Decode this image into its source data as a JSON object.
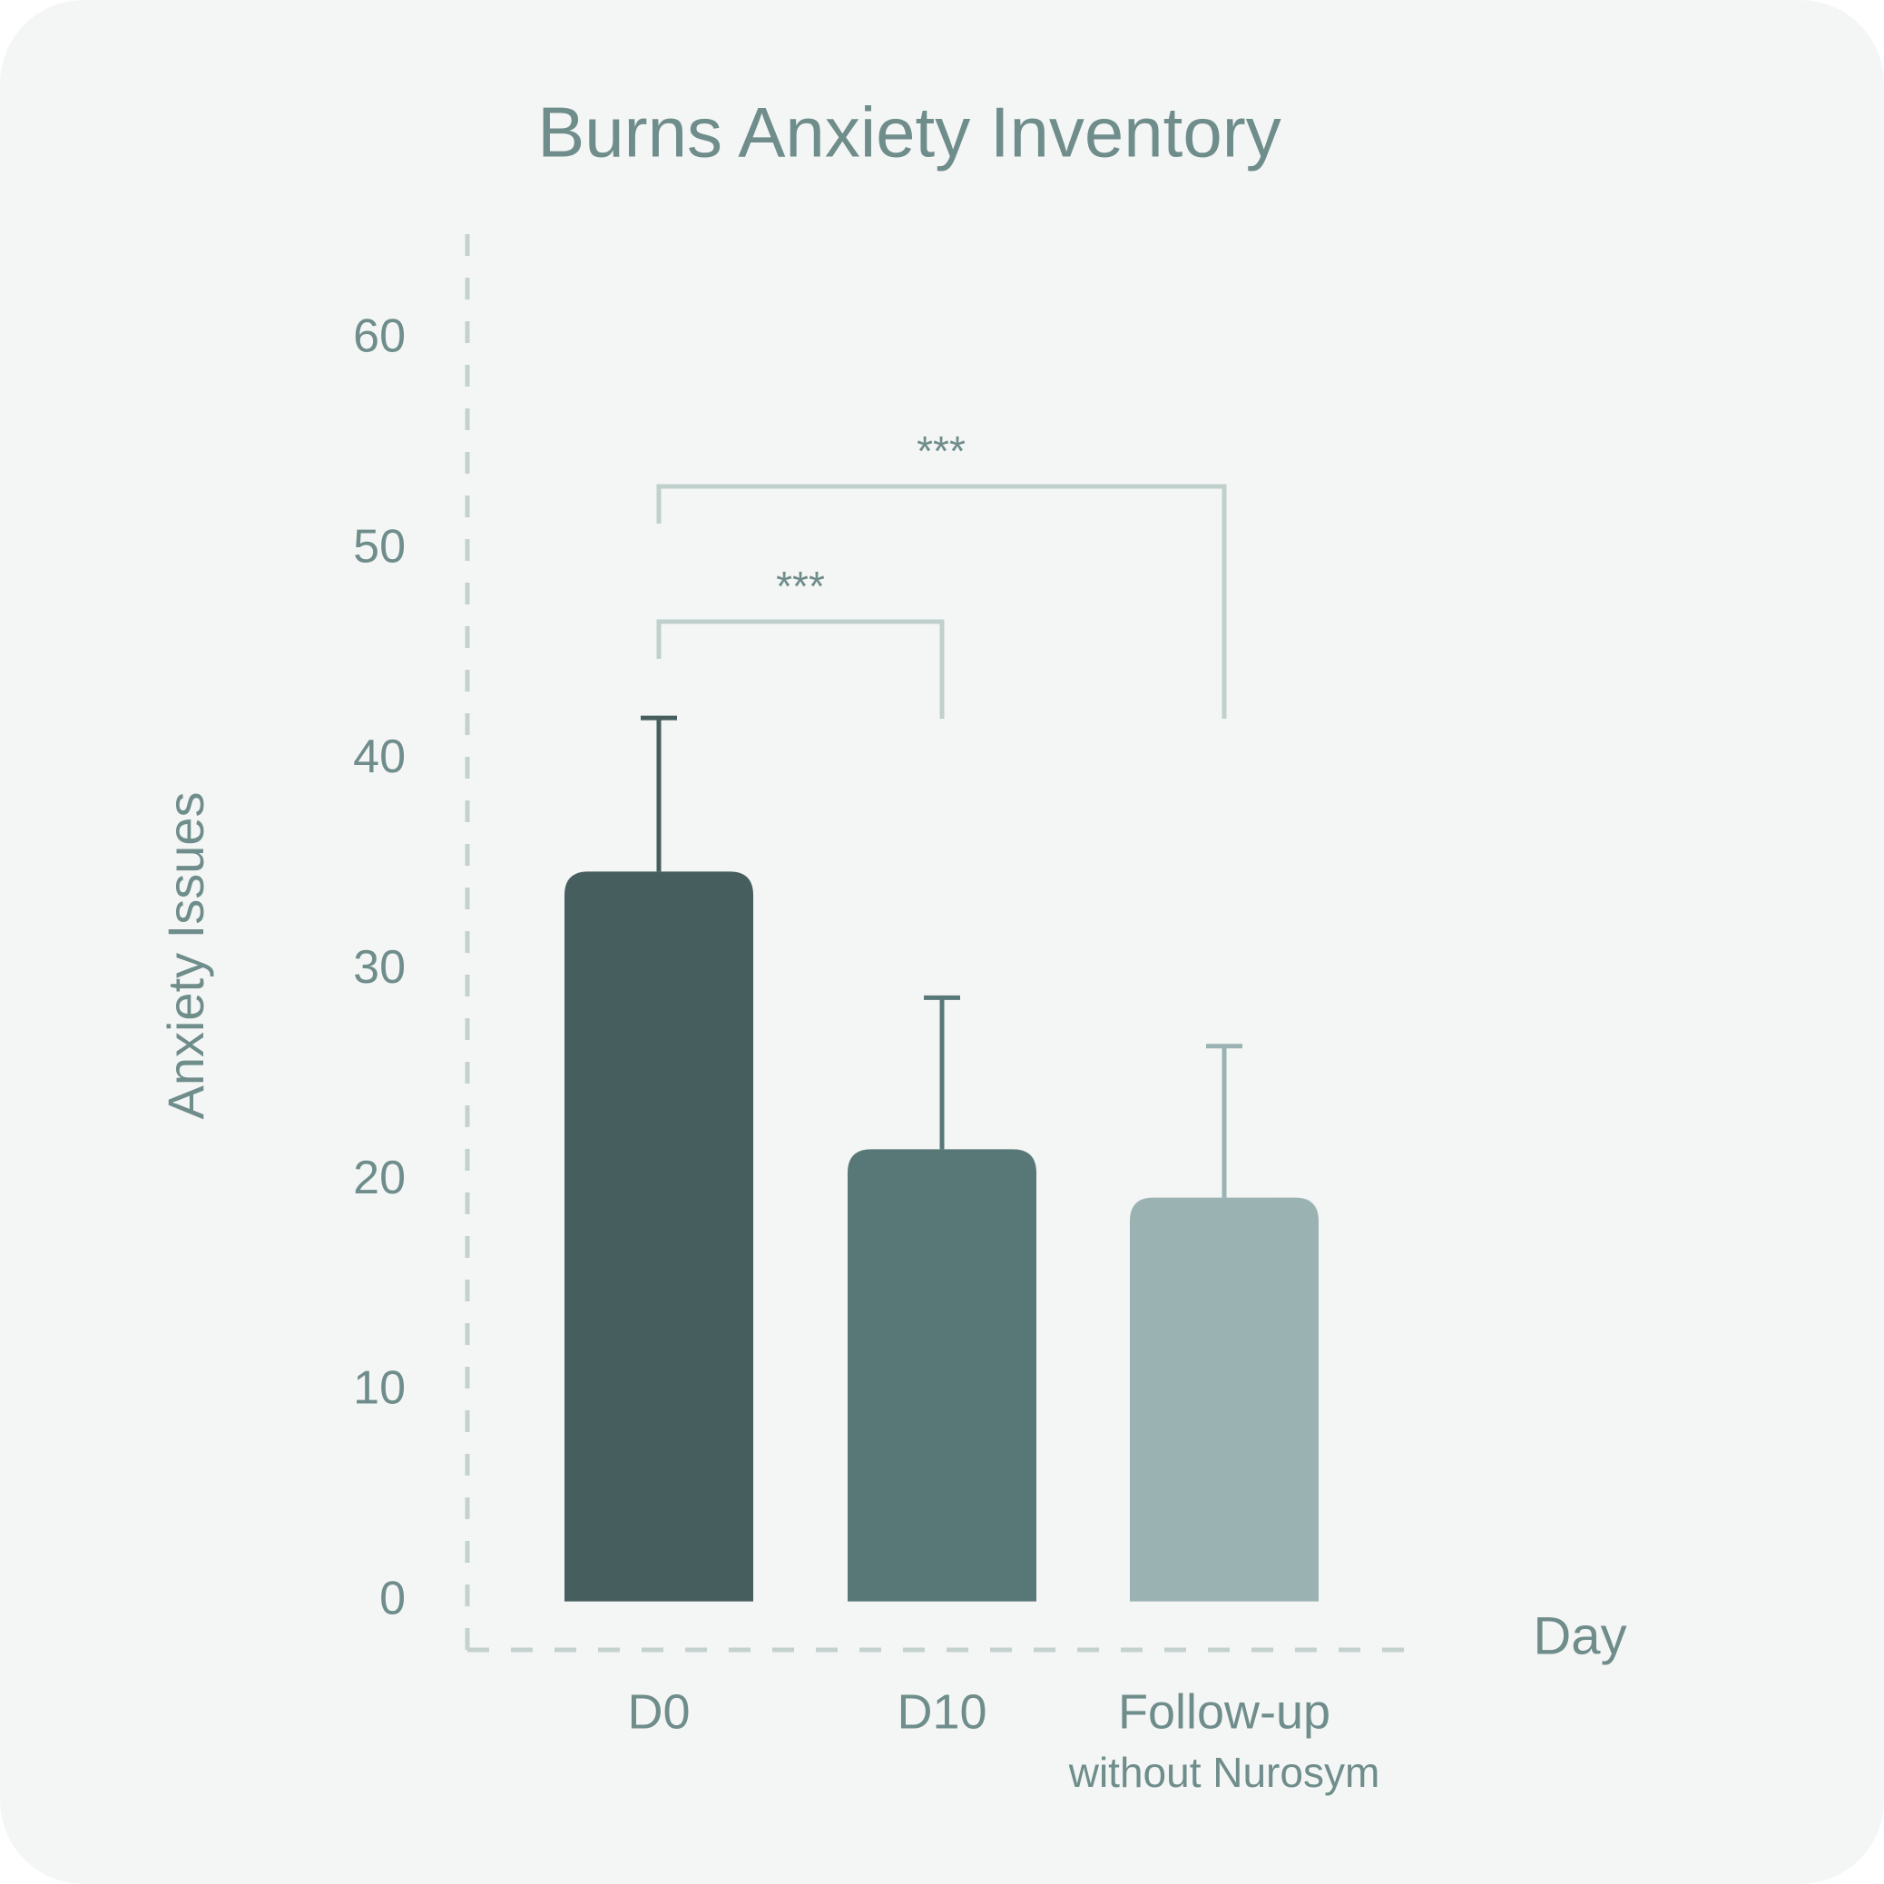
{
  "chart_data": {
    "type": "bar",
    "title": "Burns Anxiety Inventory",
    "categories": [
      "D0",
      "D10",
      "Follow-up"
    ],
    "x_sublabel": "without Nurosym",
    "values": [
      34.7,
      21.5,
      19.2
    ],
    "errors": [
      7.3,
      7.2,
      7.2
    ],
    "colors": [
      "#465f5e",
      "#587877",
      "#9ab3b2"
    ],
    "x_label": "Day",
    "y_label": "Anxiety Issues",
    "ylim": [
      -2.3,
      65
    ],
    "yticks": [
      0,
      10,
      20,
      30,
      40,
      50,
      60
    ],
    "annotations": [
      "***",
      "***"
    ]
  }
}
